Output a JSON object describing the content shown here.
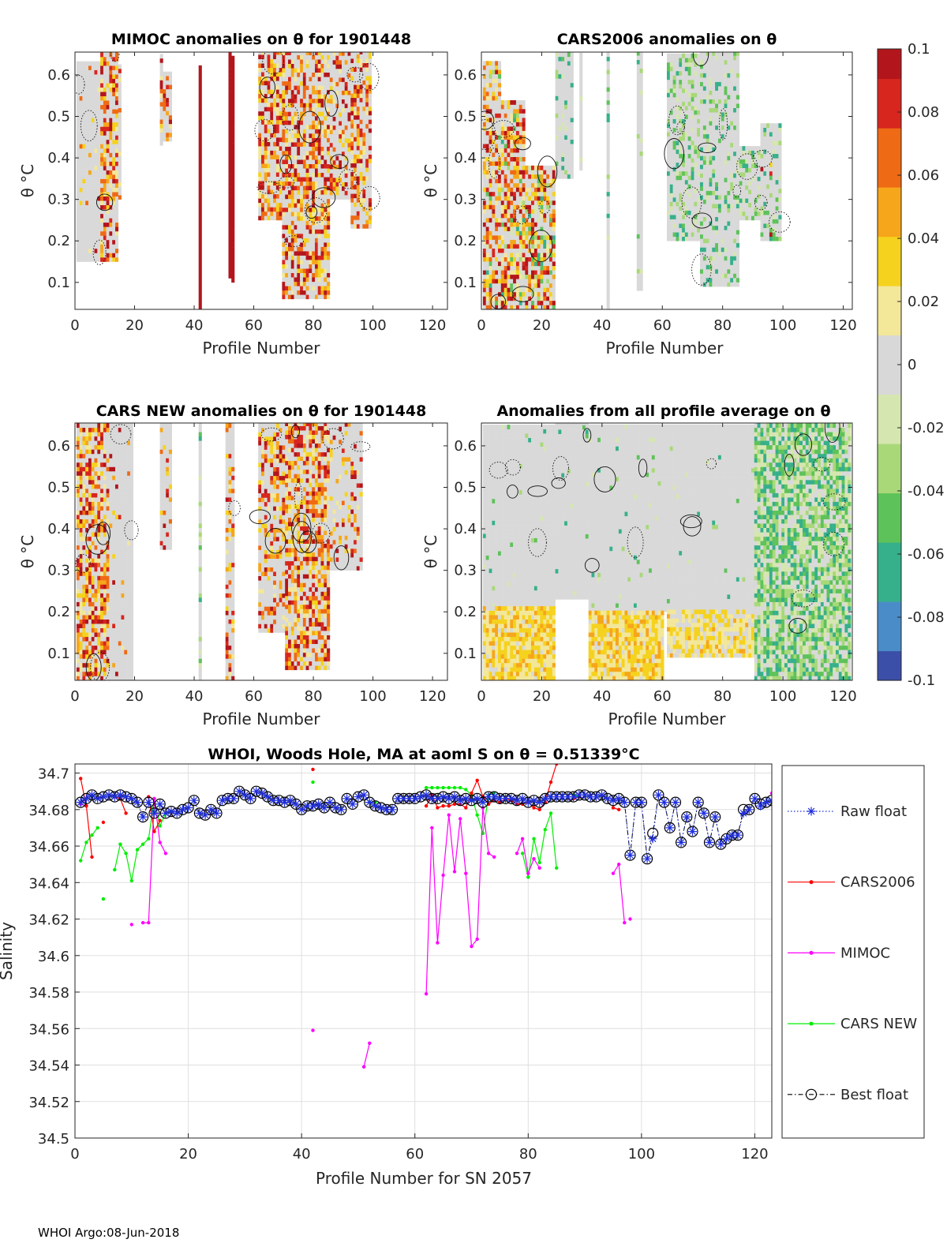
{
  "colors": {
    "raw": "#1f2fe0",
    "cars2006": "#ff0000",
    "mimoc": "#ff00ff",
    "cars_new": "#00ee00",
    "best": "#000000",
    "colormap": [
      "#3b4fa8",
      "#4a8cc8",
      "#36b08a",
      "#5ec25a",
      "#a8d878",
      "#d6e6b0",
      "#d8d8d8",
      "#f3e79a",
      "#f5d21e",
      "#f6a61a",
      "#ef6a14",
      "#d7261e",
      "#b2161c"
    ]
  },
  "colorbar": {
    "ticks": [
      "0.1",
      "0.08",
      "0.06",
      "0.04",
      "0.02",
      "0",
      "-0.02",
      "-0.04",
      "-0.06",
      "-0.08",
      "-0.1"
    ]
  },
  "panels": [
    {
      "title": "MIMOC anomalies on θ  for 1901448",
      "xlabel": "Profile Number",
      "ylabel": "θ °C",
      "xticks": [
        "0",
        "20",
        "40",
        "60",
        "80",
        "100",
        "120"
      ],
      "yticks": [
        "0.6",
        "0.5",
        "0.4",
        "0.3",
        "0.2",
        "0.1"
      ],
      "xlim": [
        0,
        125
      ],
      "ylim": [
        0.035,
        0.655
      ]
    },
    {
      "title": "CARS2006 anomalies on θ",
      "xlabel": "Profile Number",
      "ylabel": "θ °C",
      "xticks": [
        "0",
        "20",
        "40",
        "60",
        "80",
        "100",
        "120"
      ],
      "yticks": [
        "0.6",
        "0.5",
        "0.4",
        "0.3",
        "0.2",
        "0.1"
      ],
      "xlim": [
        0,
        123
      ],
      "ylim": [
        0.035,
        0.655
      ]
    },
    {
      "title": "CARS NEW anomalies on θ for 1901448",
      "xlabel": "Profile Number",
      "ylabel": "θ °C",
      "xticks": [
        "0",
        "20",
        "40",
        "60",
        "80",
        "100",
        "120"
      ],
      "yticks": [
        "0.6",
        "0.5",
        "0.4",
        "0.3",
        "0.2",
        "0.1"
      ],
      "xlim": [
        0,
        125
      ],
      "ylim": [
        0.035,
        0.655
      ]
    },
    {
      "title": "Anomalies from all profile average on θ",
      "xlabel": "Profile Number",
      "ylabel": "θ °C",
      "xticks": [
        "0",
        "20",
        "40",
        "60",
        "80",
        "100",
        "120"
      ],
      "yticks": [
        "0.6",
        "0.5",
        "0.4",
        "0.3",
        "0.2",
        "0.1"
      ],
      "xlim": [
        0,
        123
      ],
      "ylim": [
        0.035,
        0.655
      ]
    }
  ],
  "chart_data": {
    "type": "line",
    "title": "WHOI, Woods Hole, MA at aoml S on θ = 0.51339°C",
    "xlabel": "Profile Number for SN 2057",
    "ylabel": "Salinity",
    "xlim": [
      0,
      123
    ],
    "ylim": [
      34.5,
      34.705
    ],
    "xticks": [
      "0",
      "20",
      "40",
      "60",
      "80",
      "100",
      "120"
    ],
    "yticks": [
      "34.7",
      "34.68",
      "34.66",
      "34.64",
      "34.62",
      "34.6",
      "34.58",
      "34.56",
      "34.54",
      "34.52",
      "34.5"
    ],
    "grid": true,
    "legend_position": "outside-right",
    "series": [
      {
        "name": "Raw float",
        "x": [
          1,
          2,
          3,
          4,
          5,
          6,
          7,
          8,
          9,
          10,
          11,
          12,
          13,
          14,
          15,
          16,
          17,
          18,
          19,
          20,
          21,
          22,
          23,
          24,
          25,
          26,
          27,
          28,
          29,
          30,
          31,
          32,
          33,
          34,
          35,
          36,
          37,
          38,
          39,
          40,
          41,
          42,
          43,
          44,
          45,
          46,
          47,
          48,
          49,
          50,
          51,
          52,
          53,
          54,
          55,
          56,
          57,
          58,
          59,
          60,
          61,
          62,
          63,
          64,
          65,
          66,
          67,
          68,
          69,
          70,
          71,
          72,
          73,
          74,
          75,
          76,
          77,
          78,
          79,
          80,
          81,
          82,
          83,
          84,
          85,
          86,
          87,
          88,
          89,
          90,
          91,
          92,
          93,
          94,
          95,
          96,
          97,
          98,
          99,
          100,
          101,
          102,
          103,
          104,
          105,
          106,
          107,
          108,
          109,
          110,
          111,
          112,
          113,
          114,
          115,
          116,
          117,
          118,
          119,
          120,
          121,
          122,
          123
        ],
        "y": [
          34.684,
          34.686,
          34.688,
          34.686,
          34.687,
          34.688,
          34.687,
          34.688,
          34.687,
          34.686,
          34.684,
          34.676,
          34.684,
          34.678,
          34.683,
          34.678,
          34.679,
          34.678,
          34.68,
          34.681,
          34.685,
          34.678,
          34.677,
          34.68,
          34.678,
          34.685,
          34.686,
          34.686,
          34.69,
          34.688,
          34.686,
          34.69,
          34.689,
          34.687,
          34.685,
          34.685,
          34.684,
          34.685,
          34.683,
          34.68,
          34.682,
          34.682,
          34.683,
          34.681,
          34.684,
          34.681,
          34.68,
          34.686,
          34.683,
          34.687,
          34.688,
          34.684,
          34.682,
          34.681,
          34.68,
          34.68,
          34.686,
          34.686,
          34.686,
          34.686,
          34.687,
          34.688,
          34.686,
          34.686,
          34.687,
          34.686,
          34.687,
          34.685,
          34.686,
          34.685,
          34.686,
          34.684,
          34.687,
          34.687,
          34.686,
          34.686,
          34.686,
          34.685,
          34.686,
          34.684,
          34.685,
          34.684,
          34.686,
          34.687,
          34.687,
          34.687,
          34.687,
          34.687,
          34.688,
          34.688,
          34.687,
          34.687,
          34.688,
          34.686,
          34.685,
          34.686,
          34.684,
          34.655,
          34.684,
          34.684,
          34.653,
          34.664,
          34.688,
          34.684,
          34.67,
          34.684,
          34.662,
          34.676,
          34.668,
          34.684,
          34.678,
          34.662,
          34.676,
          34.661,
          34.664,
          34.666,
          34.666,
          34.678,
          34.68,
          34.686,
          34.682,
          34.684,
          34.685
        ]
      },
      {
        "name": "CARS2006",
        "segments": [
          {
            "x": [
              1,
              2,
              3
            ],
            "y": [
              34.697,
              34.682,
              34.654
            ]
          },
          {
            "x": [
              5
            ],
            "y": [
              34.673
            ]
          },
          {
            "x": [
              7,
              8,
              9
            ],
            "y": [
              34.687,
              34.686,
              34.678
            ]
          },
          {
            "x": [
              13,
              14,
              15
            ],
            "y": [
              34.687,
              34.668,
              34.674
            ]
          },
          {
            "x": [
              42
            ],
            "y": [
              34.702
            ]
          },
          {
            "x": [
              62,
              63,
              64,
              65,
              66,
              67,
              68,
              69,
              70,
              71,
              72,
              73,
              74,
              75,
              76,
              77,
              78,
              79,
              80,
              81,
              82,
              83,
              84,
              85
            ],
            "y": [
              34.682,
              34.688,
              34.681,
              34.682,
              34.682,
              34.683,
              34.683,
              34.681,
              34.689,
              34.696,
              34.687,
              34.683,
              34.685,
              34.684,
              34.686,
              34.685,
              34.683,
              34.683,
              34.684,
              34.681,
              34.68,
              34.684,
              34.695,
              34.705
            ]
          },
          {
            "x": [
              88,
              89
            ],
            "y": [
              34.686,
              34.687
            ]
          },
          {
            "x": [
              95,
              96
            ],
            "y": [
              34.681,
              34.68
            ]
          }
        ]
      },
      {
        "name": "MIMOC",
        "segments": [
          {
            "x": [
              1,
              2
            ],
            "y": [
              34.683,
              34.682
            ]
          },
          {
            "x": [
              10
            ],
            "y": [
              34.617
            ]
          },
          {
            "x": [
              12,
              13,
              14,
              15,
              16
            ],
            "y": [
              34.618,
              34.618,
              34.686,
              34.662,
              34.656
            ]
          },
          {
            "x": [
              42
            ],
            "y": [
              34.559
            ]
          },
          {
            "x": [
              51,
              52
            ],
            "y": [
              34.539,
              34.552
            ]
          },
          {
            "x": [
              62,
              63,
              64,
              65,
              66,
              67,
              68,
              69,
              70,
              71,
              72,
              73,
              74
            ],
            "y": [
              34.579,
              34.67,
              34.607,
              34.644,
              34.677,
              34.646,
              34.675,
              34.645,
              34.605,
              34.609,
              34.681,
              34.656,
              34.654
            ]
          },
          {
            "x": [
              78,
              79,
              80,
              81,
              82
            ],
            "y": [
              34.656,
              34.664,
              34.645,
              34.653,
              34.648
            ]
          },
          {
            "x": [
              95,
              96,
              97
            ],
            "y": [
              34.645,
              34.65,
              34.618
            ]
          },
          {
            "x": [
              98
            ],
            "y": [
              34.62
            ]
          },
          {
            "x": [
              123
            ],
            "y": [
              34.689
            ]
          }
        ]
      },
      {
        "name": "CARS NEW",
        "segments": [
          {
            "x": [
              1,
              2,
              3,
              4
            ],
            "y": [
              34.652,
              34.662,
              34.666,
              34.67
            ]
          },
          {
            "x": [
              5
            ],
            "y": [
              34.631
            ]
          },
          {
            "x": [
              7,
              8,
              9,
              10,
              11,
              12,
              13,
              14,
              15,
              16
            ],
            "y": [
              34.647,
              34.661,
              34.656,
              34.641,
              34.658,
              34.661,
              34.664,
              34.686,
              34.671,
              34.678
            ]
          },
          {
            "x": [
              42
            ],
            "y": [
              34.695
            ]
          },
          {
            "x": [
              52,
              53
            ],
            "y": [
              34.684,
              34.684
            ]
          },
          {
            "x": [
              62,
              63,
              64,
              65,
              66,
              67,
              68,
              69,
              70,
              71,
              72,
              73,
              74
            ],
            "y": [
              34.692,
              34.692,
              34.692,
              34.692,
              34.692,
              34.692,
              34.692,
              34.691,
              34.688,
              34.677,
              34.667,
              34.688,
              34.689
            ]
          },
          {
            "x": [
              79,
              80,
              81,
              82,
              83,
              84,
              85
            ],
            "y": [
              34.656,
              34.643,
              34.664,
              34.651,
              34.669,
              34.678,
              34.648
            ]
          },
          {
            "x": [
              88,
              89
            ],
            "y": [
              34.688,
              34.687
            ]
          }
        ]
      },
      {
        "name": "Best float",
        "x": [
          1,
          2,
          3,
          4,
          5,
          6,
          7,
          8,
          9,
          10,
          11,
          12,
          13,
          14,
          15,
          16,
          17,
          18,
          19,
          20,
          21,
          22,
          23,
          24,
          25,
          26,
          27,
          28,
          29,
          30,
          31,
          32,
          33,
          34,
          35,
          36,
          37,
          38,
          39,
          40,
          41,
          42,
          43,
          44,
          45,
          46,
          47,
          48,
          49,
          50,
          51,
          52,
          53,
          54,
          55,
          56,
          57,
          58,
          59,
          60,
          61,
          62,
          63,
          64,
          65,
          66,
          67,
          68,
          69,
          70,
          71,
          72,
          73,
          74,
          75,
          76,
          77,
          78,
          79,
          80,
          81,
          82,
          83,
          84,
          85,
          86,
          87,
          88,
          89,
          90,
          91,
          92,
          93,
          94,
          95,
          96,
          97,
          98,
          99,
          100,
          101,
          102,
          103,
          104,
          105,
          106,
          107,
          108,
          109,
          110,
          111,
          112,
          113,
          114,
          115,
          116,
          117,
          118,
          119,
          120,
          121,
          122,
          123
        ],
        "y": [
          34.684,
          34.686,
          34.688,
          34.686,
          34.687,
          34.688,
          34.687,
          34.688,
          34.687,
          34.686,
          34.684,
          34.676,
          34.684,
          34.678,
          34.683,
          34.678,
          34.679,
          34.678,
          34.68,
          34.681,
          34.685,
          34.678,
          34.677,
          34.68,
          34.678,
          34.685,
          34.686,
          34.686,
          34.69,
          34.688,
          34.686,
          34.69,
          34.689,
          34.687,
          34.685,
          34.685,
          34.684,
          34.685,
          34.683,
          34.68,
          34.682,
          34.682,
          34.683,
          34.681,
          34.684,
          34.681,
          34.68,
          34.686,
          34.683,
          34.687,
          34.688,
          34.684,
          34.682,
          34.681,
          34.68,
          34.68,
          34.686,
          34.686,
          34.686,
          34.686,
          34.687,
          34.688,
          34.686,
          34.686,
          34.687,
          34.686,
          34.687,
          34.685,
          34.686,
          34.685,
          34.686,
          34.684,
          34.687,
          34.687,
          34.686,
          34.686,
          34.686,
          34.685,
          34.686,
          34.684,
          34.685,
          34.684,
          34.686,
          34.687,
          34.687,
          34.687,
          34.687,
          34.687,
          34.688,
          34.688,
          34.687,
          34.687,
          34.688,
          34.686,
          34.685,
          34.686,
          34.684,
          34.655,
          34.684,
          34.684,
          34.653,
          34.667,
          34.688,
          34.684,
          34.67,
          34.684,
          34.662,
          34.676,
          34.668,
          34.684,
          34.678,
          34.662,
          34.676,
          34.661,
          34.664,
          34.666,
          34.666,
          34.68,
          34.68,
          34.686,
          34.683,
          34.684,
          34.685
        ]
      }
    ]
  },
  "footer": "WHOI Argo:08-Jun-2018"
}
